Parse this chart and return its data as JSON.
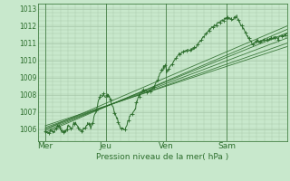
{
  "bg_color": "#c8e8cc",
  "grid_color": "#a8c8aa",
  "line_color": "#2d6e2d",
  "xlabel_text": "Pression niveau de la mer( hPa )",
  "yticks": [
    1006,
    1007,
    1008,
    1009,
    1010,
    1011,
    1012,
    1013
  ],
  "ymin": 1005.3,
  "ymax": 1013.3,
  "xtick_labels": [
    "Mer",
    "Jeu",
    "Ven",
    "Sam"
  ],
  "xtick_positions": [
    0,
    24,
    48,
    72
  ],
  "xmin": -3,
  "xmax": 96
}
